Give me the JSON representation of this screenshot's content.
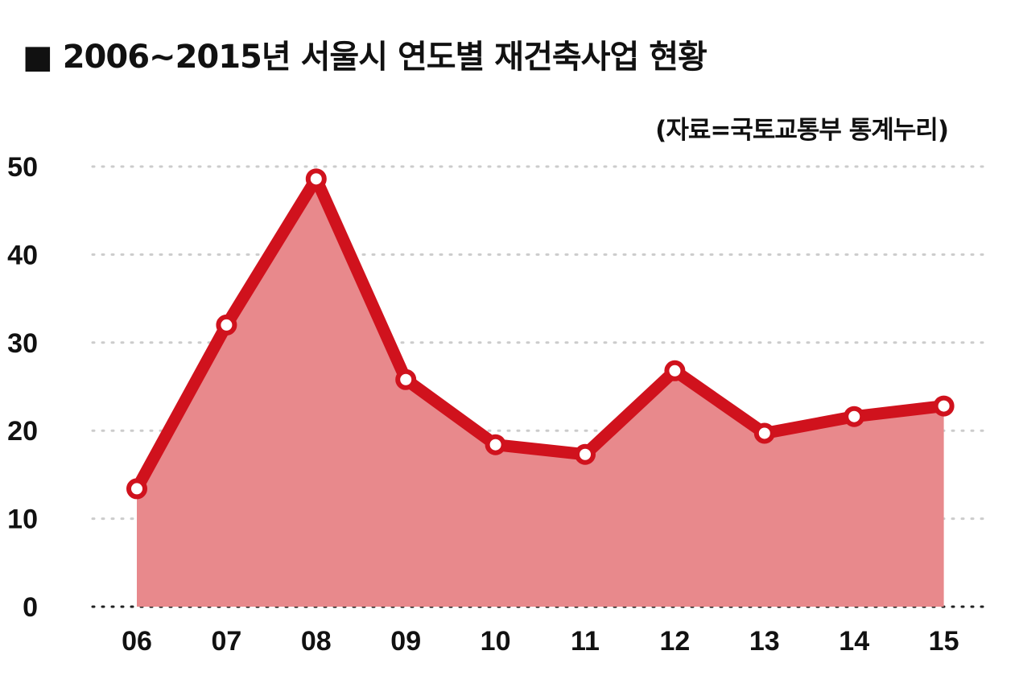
{
  "title": "■ 2006~2015년 서울시 연도별 재건축사업 현황",
  "source": "(자료=국토교통부 통계누리)",
  "colors": {
    "line": "#d0121d",
    "fill": "#e8898c",
    "marker_fill": "#ffffff",
    "grid": "#cccccc"
  },
  "chart_data": {
    "type": "area",
    "title": "■ 2006~2015년 서울시 연도별 재건축사업 현황",
    "categories": [
      "06",
      "07",
      "08",
      "09",
      "10",
      "11",
      "12",
      "13",
      "14",
      "15"
    ],
    "values": [
      13.4,
      32.0,
      48.6,
      25.8,
      18.4,
      17.3,
      26.8,
      19.7,
      21.6,
      22.8
    ],
    "ylim": [
      0,
      50
    ],
    "yticks": [
      "0",
      "10",
      "20",
      "30",
      "40",
      "50"
    ],
    "grid": "horizontal dotted",
    "legend": "none",
    "markers": "white circles with red outline"
  }
}
